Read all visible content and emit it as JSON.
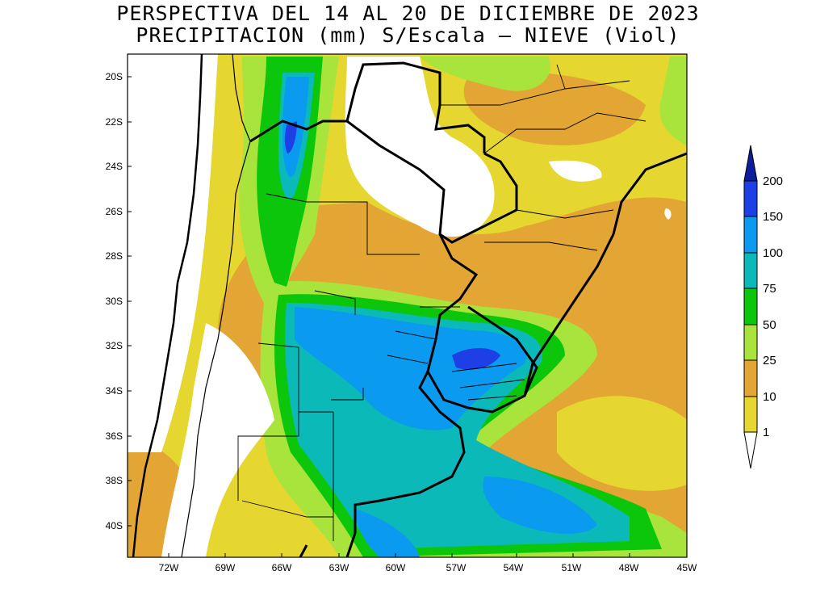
{
  "title_line1": "PERSPECTIVA DEL 14 AL 20 DE DICIEMBRE DE 2023",
  "title_line2": "PRECIPITACION (mm) S/Escala – NIEVE (Viol)",
  "lat_labels": [
    "20S",
    "22S",
    "24S",
    "26S",
    "28S",
    "30S",
    "32S",
    "34S",
    "36S",
    "38S",
    "40S"
  ],
  "lon_labels": [
    "72W",
    "69W",
    "66W",
    "63W",
    "60W",
    "57W",
    "54W",
    "51W",
    "48W",
    "45W"
  ],
  "legend": {
    "thresholds": [
      "1",
      "10",
      "25",
      "50",
      "75",
      "100",
      "150",
      "200"
    ],
    "colors": [
      "#ffffff",
      "#e5d630",
      "#e3a533",
      "#a8e43b",
      "#0bc60b",
      "#0bb9b9",
      "#0a9af0",
      "#1e3ee6",
      "#0c1e9a"
    ]
  }
}
